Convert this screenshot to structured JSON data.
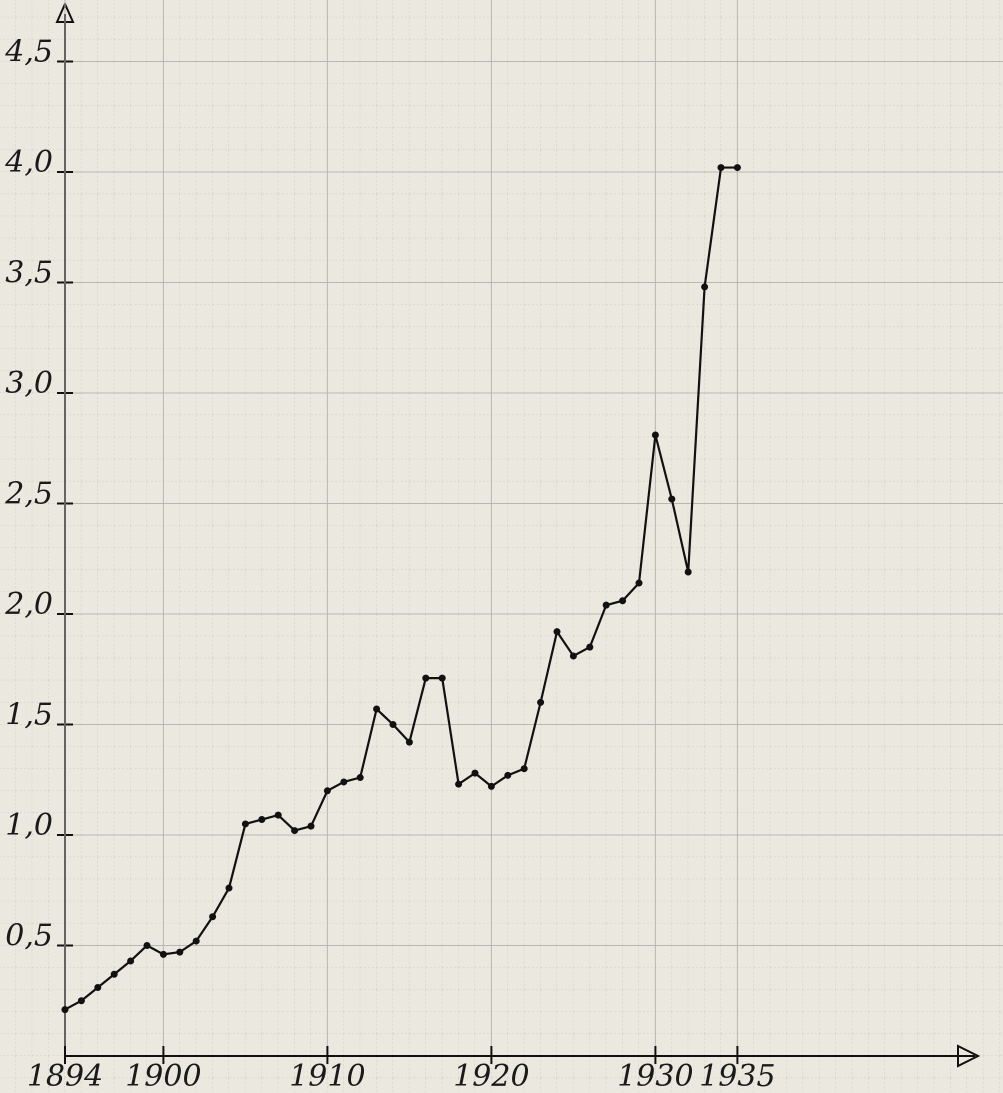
{
  "chart_data": {
    "type": "line",
    "x": [
      1894,
      1895,
      1896,
      1897,
      1898,
      1899,
      1900,
      1901,
      1902,
      1903,
      1904,
      1905,
      1906,
      1907,
      1908,
      1909,
      1910,
      1911,
      1912,
      1913,
      1914,
      1915,
      1916,
      1917,
      1918,
      1919,
      1920,
      1921,
      1922,
      1923,
      1924,
      1925,
      1926,
      1927,
      1928,
      1929,
      1930,
      1931,
      1932,
      1933,
      1934,
      1935
    ],
    "series": [
      {
        "color": "#111111",
        "values": [
          0.21,
          0.25,
          0.31,
          0.37,
          0.43,
          0.5,
          0.46,
          0.47,
          0.52,
          0.63,
          0.76,
          1.05,
          1.07,
          1.09,
          1.02,
          1.04,
          1.2,
          1.24,
          1.26,
          1.57,
          1.5,
          1.42,
          1.71,
          1.71,
          1.23,
          1.28,
          1.22,
          1.27,
          1.3,
          1.6,
          1.92,
          1.81,
          1.85,
          2.04,
          2.06,
          2.14,
          2.81,
          2.52,
          2.19,
          3.48,
          4.02,
          4.02
        ]
      }
    ],
    "xlim": [
      1894,
      1950
    ],
    "ylim": [
      0,
      4.7
    ],
    "xticks": [
      1894,
      1900,
      1910,
      1920,
      1930,
      1935
    ],
    "yticks": [
      {
        "value": 0.5,
        "label": "0,5"
      },
      {
        "value": 1.0,
        "label": "1,0"
      },
      {
        "value": 1.5,
        "label": "1,5"
      },
      {
        "value": 2.0,
        "label": "2,0"
      },
      {
        "value": 2.5,
        "label": "2,5"
      },
      {
        "value": 3.0,
        "label": "3,0"
      },
      {
        "value": 3.5,
        "label": "3,5"
      },
      {
        "value": 4.0,
        "label": "4,0"
      },
      {
        "value": 4.5,
        "label": "4,5"
      }
    ],
    "grid": true
  }
}
